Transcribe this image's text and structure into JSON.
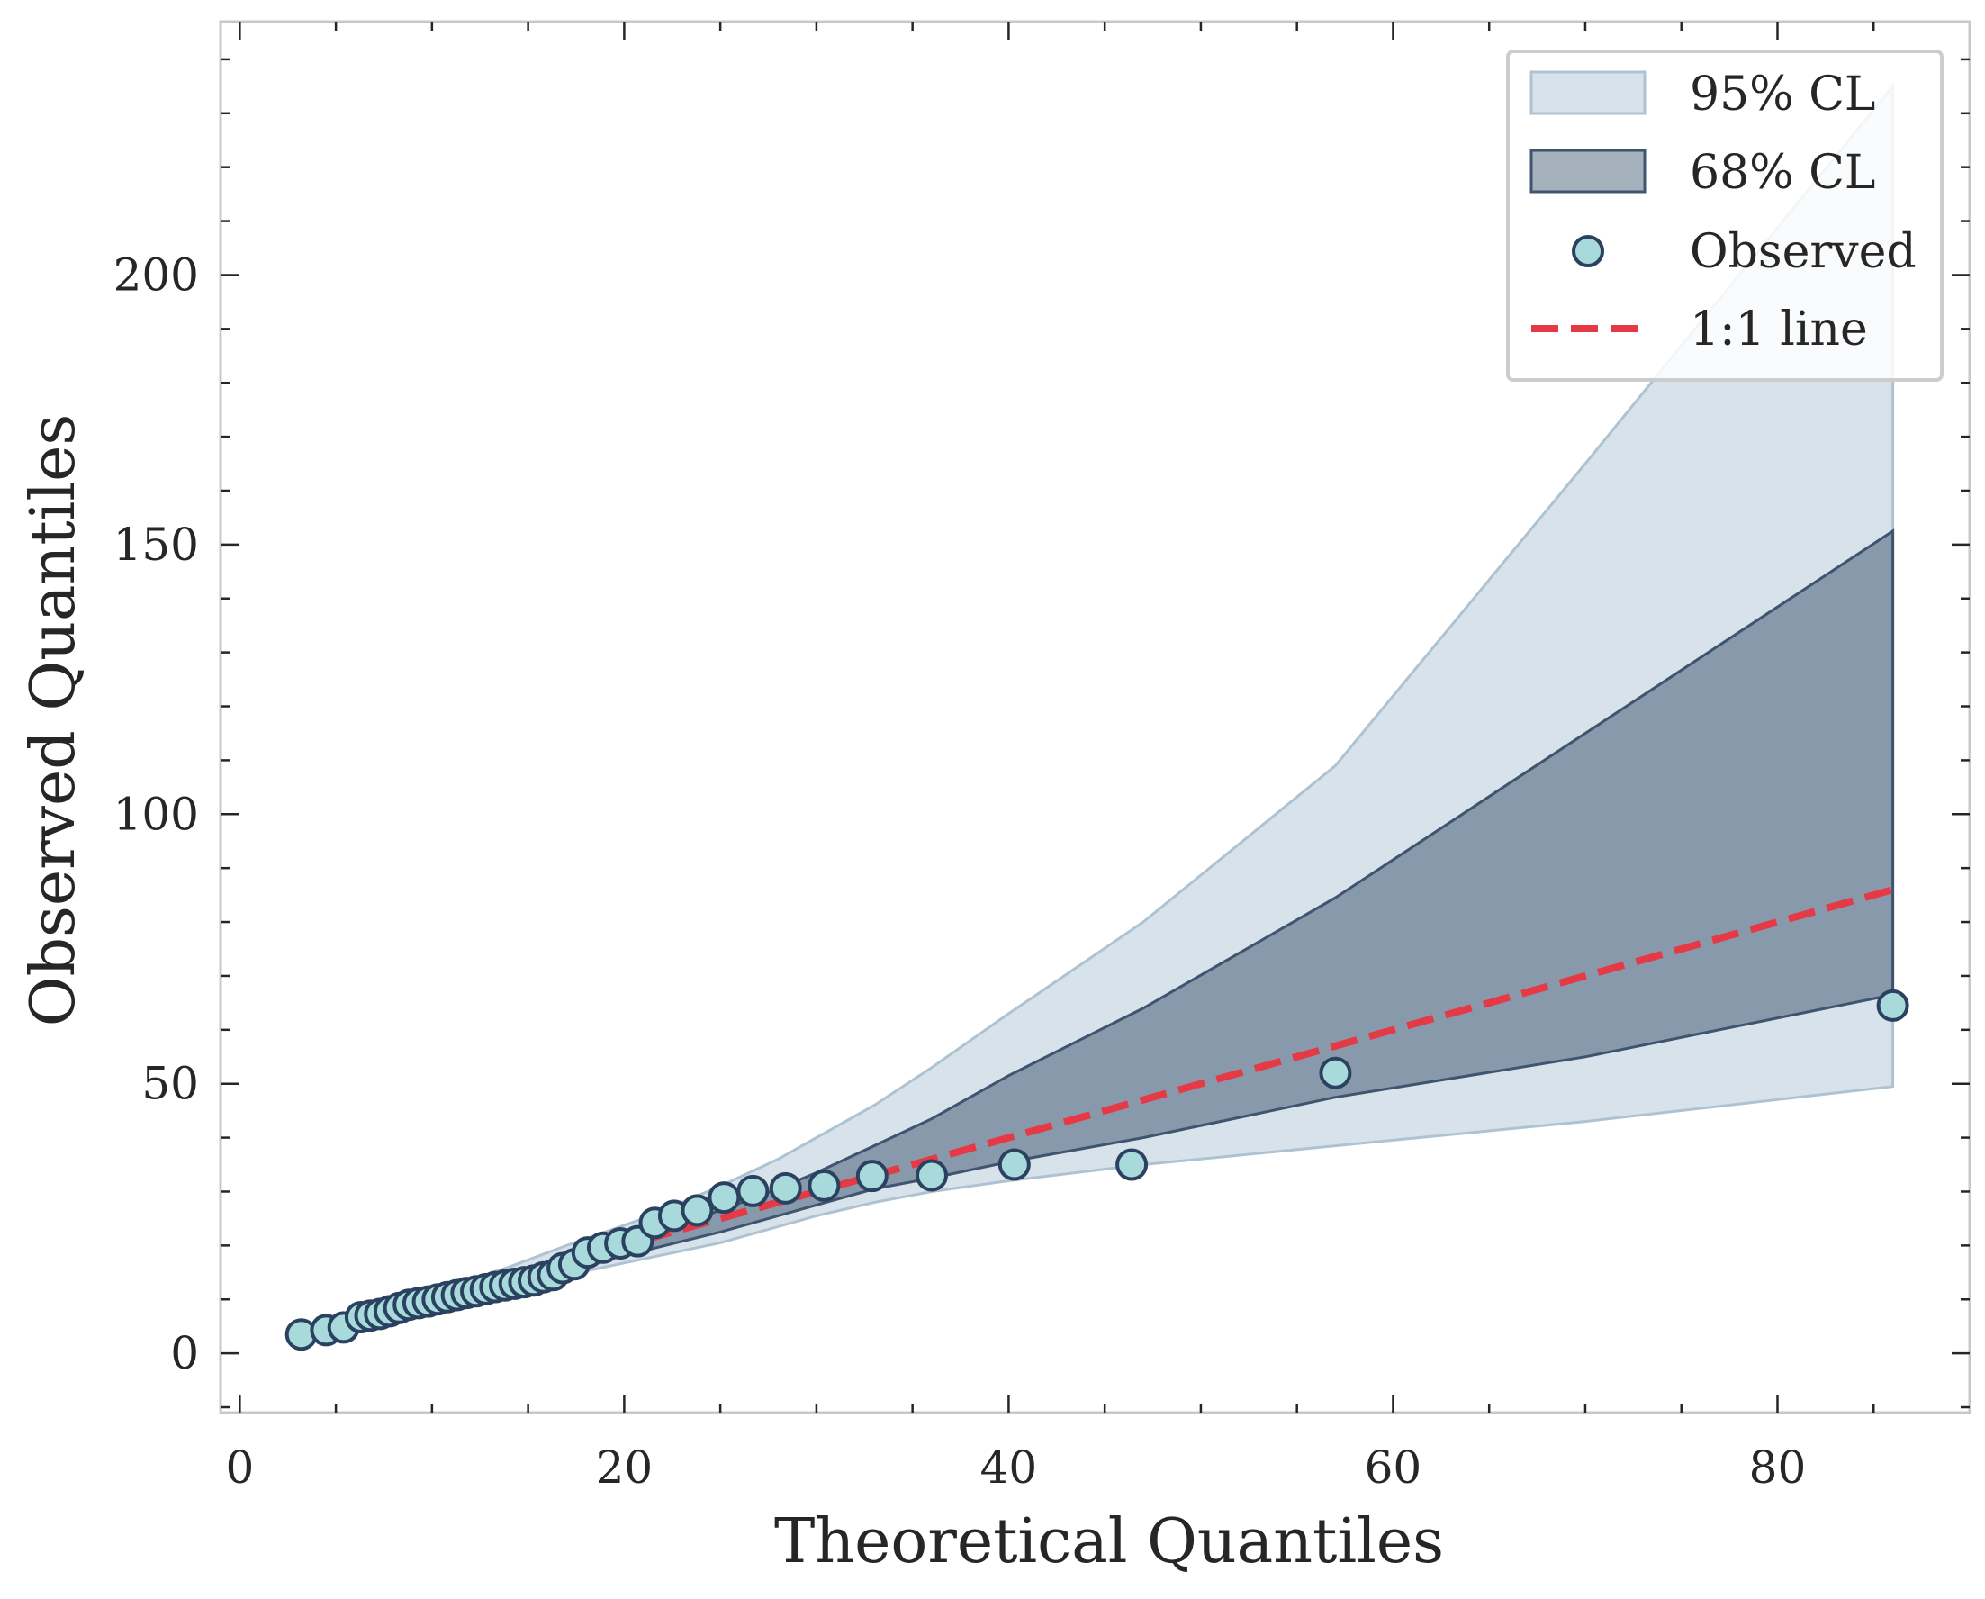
{
  "chart_data": {
    "type": "scatter",
    "title": "",
    "xlabel": "Theoretical Quantiles",
    "ylabel": "Observed Quantiles",
    "xlim": [
      -1,
      90
    ],
    "ylim": [
      -11,
      247
    ],
    "xticks": [
      0,
      20,
      40,
      60,
      80
    ],
    "yticks": [
      0,
      50,
      100,
      150,
      200
    ],
    "xtick_labels": [
      "0",
      "20",
      "40",
      "60",
      "80"
    ],
    "ytick_labels": [
      "0",
      "50",
      "100",
      "150",
      "200"
    ],
    "legend_position": "top-right",
    "legend": [
      {
        "label": "95% CL",
        "kind": "band95"
      },
      {
        "label": "68% CL",
        "kind": "band68"
      },
      {
        "label": "Observed",
        "kind": "marker"
      },
      {
        "label": "1:1 line",
        "kind": "line"
      }
    ],
    "colors": {
      "band95_fill": "#c8d6e1",
      "band95_edge": "#aec3d2",
      "band68_fill": "#5c7188",
      "band68_edge": "#3f546e",
      "marker_fill": "#a8dadc",
      "marker_edge": "#2b4160",
      "line": "#e63946",
      "spine": "#c8c8c8",
      "text": "#262626"
    },
    "band95": {
      "x": [
        3,
        5,
        8,
        11,
        14,
        17,
        21,
        25,
        28,
        30,
        33,
        36,
        40,
        47,
        57,
        70,
        86
      ],
      "lower": [
        3,
        4.5,
        7,
        9.5,
        12,
        14.5,
        17.5,
        20.5,
        23.5,
        25.5,
        28,
        30,
        32,
        35,
        38.5,
        43,
        49.5
      ],
      "upper": [
        4,
        6,
        9,
        12.5,
        16,
        20,
        25,
        31,
        36,
        40,
        46,
        53,
        63,
        80,
        109,
        165,
        235
      ]
    },
    "band68": {
      "x": [
        3,
        5,
        8,
        11,
        14,
        17,
        21,
        25,
        28,
        30,
        33,
        36,
        40,
        47,
        57,
        70,
        86
      ],
      "lower": [
        3.5,
        5,
        7.5,
        10.5,
        13,
        15.5,
        19,
        22.5,
        25.5,
        27.5,
        30.5,
        32.5,
        35.5,
        40,
        47.5,
        55,
        66.5
      ],
      "upper": [
        4,
        5.5,
        8.5,
        11.5,
        14.5,
        17.5,
        22,
        26.5,
        30.5,
        33.5,
        38.5,
        43.5,
        51.5,
        64,
        84.5,
        115,
        152.5
      ]
    },
    "observed": {
      "x": [
        3.2,
        4.5,
        5.4,
        6.3,
        6.8,
        7.3,
        7.8,
        8.3,
        8.8,
        9.3,
        9.8,
        10.3,
        10.8,
        11.3,
        11.8,
        12.3,
        12.8,
        13.3,
        13.8,
        14.3,
        14.8,
        15.3,
        15.8,
        16.3,
        16.8,
        17.4,
        18.1,
        18.9,
        19.8,
        20.7,
        21.6,
        22.6,
        23.8,
        25.2,
        26.7,
        28.4,
        30.4,
        32.9,
        36.0,
        40.3,
        46.4,
        57.0,
        86.0
      ],
      "y": [
        3.5,
        4.3,
        4.8,
        6.7,
        7.0,
        7.3,
        7.8,
        8.4,
        9.0,
        9.3,
        9.6,
        10.0,
        10.4,
        10.8,
        11.2,
        11.5,
        11.9,
        12.3,
        12.6,
        12.9,
        13.2,
        13.5,
        14.1,
        14.5,
        15.8,
        16.5,
        18.7,
        19.6,
        20.4,
        20.8,
        24.2,
        25.5,
        26.5,
        28.9,
        30.1,
        30.6,
        31.1,
        32.9,
        33.0,
        35.0,
        35.0,
        52.0,
        64.5
      ]
    },
    "line_1_1": {
      "x": [
        3.2,
        86
      ],
      "y": [
        3.2,
        86
      ]
    }
  }
}
